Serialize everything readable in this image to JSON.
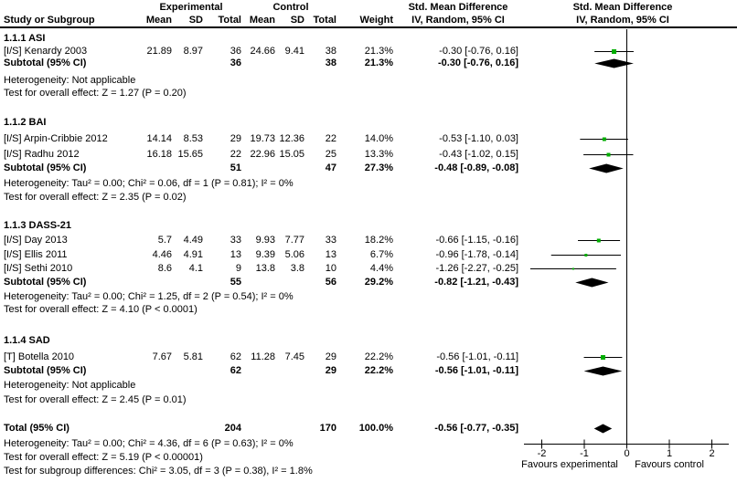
{
  "header": {
    "group_exp": "Experimental",
    "group_ctrl": "Control",
    "smd_stats": "Std. Mean Difference",
    "smd_graph": "Std. Mean Difference",
    "col_study": "Study or Subgroup",
    "col_mean_e": "Mean",
    "col_sd_e": "SD",
    "col_total_e": "Total",
    "col_mean_c": "Mean",
    "col_sd_c": "SD",
    "col_total_c": "Total",
    "col_weight": "Weight",
    "iv_stats": "IV, Random, 95% CI",
    "iv_graph": "IV, Random, 95% CI"
  },
  "colors": {
    "marker_green": "#00ad00",
    "diamond_black": "#000000",
    "line_black": "#000000"
  },
  "chart_data": {
    "type": "forest",
    "effect_label": "Std. Mean Difference",
    "method": "IV, Random, 95% CI",
    "axis_ticks": [
      -2,
      -1,
      0,
      1,
      2
    ],
    "tick_labels": [
      "-2",
      "-1",
      "0",
      "1",
      "2"
    ],
    "favours_left": "Favours experimental",
    "favours_right": "Favours control",
    "groups": [
      {
        "title": "1.1.1 ASI",
        "studies": [
          {
            "label": "[I/S] Kenardy 2003",
            "mean_e": "21.89",
            "sd_e": "8.97",
            "n_e": "36",
            "mean_c": "24.66",
            "sd_c": "9.41",
            "n_c": "38",
            "weight": "21.3%",
            "ci_text": "-0.30 [-0.76, 0.16]",
            "est": -0.3,
            "lo": -0.76,
            "hi": 0.16,
            "weight_pct": 21.3
          }
        ],
        "subtotal": {
          "label": "Subtotal (95% CI)",
          "n_e": "36",
          "n_c": "38",
          "weight": "21.3%",
          "ci_text": "-0.30 [-0.76, 0.16]",
          "est": -0.3,
          "lo": -0.76,
          "hi": 0.16
        },
        "heterogeneity": "Heterogeneity: Not applicable",
        "overall": "Test for overall effect: Z = 1.27 (P = 0.20)"
      },
      {
        "title": "1.1.2 BAI",
        "studies": [
          {
            "label": "[I/S] Arpin-Cribbie 2012",
            "mean_e": "14.14",
            "sd_e": "8.53",
            "n_e": "29",
            "mean_c": "19.73",
            "sd_c": "12.36",
            "n_c": "22",
            "weight": "14.0%",
            "ci_text": "-0.53 [-1.10, 0.03]",
            "est": -0.53,
            "lo": -1.1,
            "hi": 0.03,
            "weight_pct": 14.0
          },
          {
            "label": "[I/S] Radhu 2012",
            "mean_e": "16.18",
            "sd_e": "15.65",
            "n_e": "22",
            "mean_c": "22.96",
            "sd_c": "15.05",
            "n_c": "25",
            "weight": "13.3%",
            "ci_text": "-0.43 [-1.02, 0.15]",
            "est": -0.43,
            "lo": -1.02,
            "hi": 0.15,
            "weight_pct": 13.3
          }
        ],
        "subtotal": {
          "label": "Subtotal (95% CI)",
          "n_e": "51",
          "n_c": "47",
          "weight": "27.3%",
          "ci_text": "-0.48 [-0.89, -0.08]",
          "est": -0.48,
          "lo": -0.89,
          "hi": -0.08
        },
        "heterogeneity": "Heterogeneity: Tau² = 0.00; Chi² = 0.06, df = 1 (P = 0.81); I² = 0%",
        "overall": "Test for overall effect: Z = 2.35 (P = 0.02)"
      },
      {
        "title": "1.1.3 DASS-21",
        "studies": [
          {
            "label": "[I/S] Day 2013",
            "mean_e": "5.7",
            "sd_e": "4.49",
            "n_e": "33",
            "mean_c": "9.93",
            "sd_c": "7.77",
            "n_c": "33",
            "weight": "18.2%",
            "ci_text": "-0.66 [-1.15, -0.16]",
            "est": -0.66,
            "lo": -1.15,
            "hi": -0.16,
            "weight_pct": 18.2
          },
          {
            "label": "[I/S] Ellis 2011",
            "mean_e": "4.46",
            "sd_e": "4.91",
            "n_e": "13",
            "mean_c": "9.39",
            "sd_c": "5.06",
            "n_c": "13",
            "weight": "6.7%",
            "ci_text": "-0.96 [-1.78, -0.14]",
            "est": -0.96,
            "lo": -1.78,
            "hi": -0.14,
            "weight_pct": 6.7
          },
          {
            "label": "[I/S] Sethi 2010",
            "mean_e": "8.6",
            "sd_e": "4.1",
            "n_e": "9",
            "mean_c": "13.8",
            "sd_c": "3.8",
            "n_c": "10",
            "weight": "4.4%",
            "ci_text": "-1.26 [-2.27, -0.25]",
            "est": -1.26,
            "lo": -2.27,
            "hi": -0.25,
            "weight_pct": 4.4
          }
        ],
        "subtotal": {
          "label": "Subtotal (95% CI)",
          "n_e": "55",
          "n_c": "56",
          "weight": "29.2%",
          "ci_text": "-0.82 [-1.21, -0.43]",
          "est": -0.82,
          "lo": -1.21,
          "hi": -0.43
        },
        "heterogeneity": "Heterogeneity: Tau² = 0.00; Chi² = 1.25, df = 2 (P = 0.54); I² = 0%",
        "overall": "Test for overall effect: Z = 4.10 (P < 0.0001)"
      },
      {
        "title": "1.1.4 SAD",
        "studies": [
          {
            "label": "[T] Botella 2010",
            "mean_e": "7.67",
            "sd_e": "5.81",
            "n_e": "62",
            "mean_c": "11.28",
            "sd_c": "7.45",
            "n_c": "29",
            "weight": "22.2%",
            "ci_text": "-0.56 [-1.01, -0.11]",
            "est": -0.56,
            "lo": -1.01,
            "hi": -0.11,
            "weight_pct": 22.2
          }
        ],
        "subtotal": {
          "label": "Subtotal (95% CI)",
          "n_e": "62",
          "n_c": "29",
          "weight": "22.2%",
          "ci_text": "-0.56 [-1.01, -0.11]",
          "est": -0.56,
          "lo": -1.01,
          "hi": -0.11
        },
        "heterogeneity": "Heterogeneity: Not applicable",
        "overall": "Test for overall effect: Z = 2.45 (P = 0.01)"
      }
    ],
    "total": {
      "label": "Total (95% CI)",
      "n_e": "204",
      "n_c": "170",
      "weight": "100.0%",
      "ci_text": "-0.56 [-0.77, -0.35]",
      "est": -0.56,
      "lo": -0.77,
      "hi": -0.35,
      "heterogeneity": "Heterogeneity: Tau² = 0.00; Chi² = 4.36, df = 6 (P = 0.63); I² = 0%",
      "overall": "Test for overall effect: Z = 5.19 (P < 0.00001)",
      "subgroup_diff": "Test for subgroup differences: Chi² = 3.05, df = 3 (P = 0.38), I² = 1.8%"
    }
  }
}
